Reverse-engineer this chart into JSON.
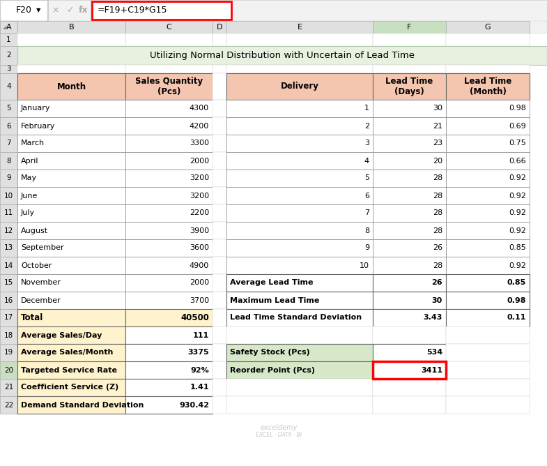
{
  "title": "Utilizing Normal Distribution with Uncertain of Lead Time",
  "formula_bar_text": "=F19+C19*G15",
  "cell_ref": "F20",
  "col_header_bg": "#D3D3D3",
  "title_bg": "#E8F0E0",
  "left_header_bg": "#F4C6B0",
  "left_summary_bg": "#FFF3CD",
  "right_header_bg": "#F4C6B0",
  "green_bg": "#D6E8C8",
  "selected_cell_border": "#FF0000",
  "col_header_selected": "#C8E0C0",
  "months": [
    "January",
    "February",
    "March",
    "April",
    "May",
    "June",
    "July",
    "August",
    "September",
    "October",
    "November",
    "December"
  ],
  "sales_qty": [
    4300,
    4200,
    3300,
    2000,
    3200,
    3200,
    2200,
    3900,
    3600,
    4900,
    2000,
    3700
  ],
  "total": 40500,
  "avg_sales_day": 111,
  "avg_sales_month": 3375,
  "targeted_service_rate": "92%",
  "coeff_service_z": "1.41",
  "demand_std_dev": "930.42",
  "deliveries": [
    1,
    2,
    3,
    4,
    5,
    6,
    7,
    8,
    9,
    10
  ],
  "lead_time_days": [
    30,
    21,
    23,
    20,
    28,
    28,
    28,
    28,
    26,
    28
  ],
  "lead_time_months": [
    "0.98",
    "0.69",
    "0.75",
    "0.66",
    "0.92",
    "0.92",
    "0.92",
    "0.92",
    "0.85",
    "0.92"
  ],
  "avg_lead_time_days": 26,
  "avg_lead_time_months": "0.85",
  "max_lead_time_days": 30,
  "max_lead_time_months": "0.98",
  "lead_time_std_dev_days": "3.43",
  "lead_time_std_dev_months": "0.11",
  "safety_stock": 534,
  "reorder_point": 3411
}
